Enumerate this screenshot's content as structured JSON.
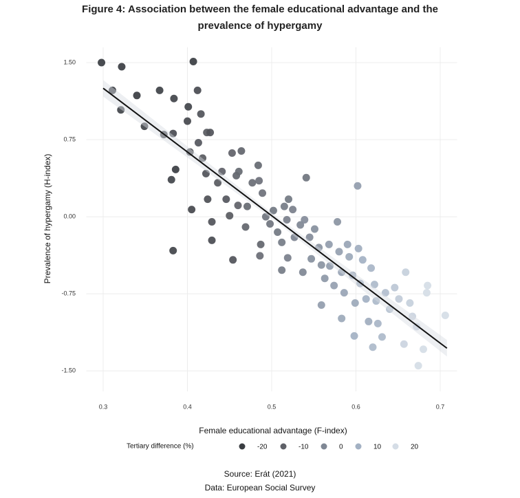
{
  "chart_data": {
    "type": "scatter",
    "title": "Figure 4: Association between the female educational advantage and the prevalence of hypergamy",
    "x_label": "Female educational advantage (F-index)",
    "y_label": "Prevalence of hypergamy (H-index)",
    "legend_title": "Tertiary difference (%)",
    "source": "Source: Erát (2021)",
    "data_note": "Data: European Social Survey",
    "xlim": [
      0.28,
      0.72
    ],
    "xticks": [
      0.3,
      0.4,
      0.5,
      0.6,
      0.7
    ],
    "ylim": [
      -1.7,
      1.65
    ],
    "yticks": [
      {
        "value": -1.5,
        "label": "-1.50"
      },
      {
        "value": -0.75,
        "label": "-0.75"
      },
      {
        "value": 0,
        "label": "0.00"
      },
      {
        "value": 0.75,
        "label": "0.75"
      },
      {
        "value": 1.5,
        "label": "1.50"
      }
    ],
    "grid": true,
    "color_scale": {
      "values": [
        -20,
        -10,
        0,
        10,
        20
      ],
      "colors": [
        "#3a3d42",
        "#5f6168",
        "#7f8794",
        "#a3b1c3",
        "#d5dde6"
      ]
    },
    "trend_line": {
      "x": [
        0.3,
        0.708
      ],
      "y": [
        1.25,
        -1.28
      ],
      "color": "#111111"
    },
    "x": [
      0.298,
      0.322,
      0.311,
      0.321,
      0.34,
      0.349,
      0.367,
      0.372,
      0.384,
      0.407,
      0.401,
      0.412,
      0.4,
      0.416,
      0.383,
      0.386,
      0.381,
      0.403,
      0.413,
      0.423,
      0.427,
      0.405,
      0.383,
      0.418,
      0.422,
      0.424,
      0.429,
      0.429,
      0.436,
      0.441,
      0.446,
      0.45,
      0.453,
      0.454,
      0.458,
      0.46,
      0.461,
      0.464,
      0.469,
      0.471,
      0.477,
      0.484,
      0.485,
      0.487,
      0.489,
      0.493,
      0.486,
      0.498,
      0.502,
      0.507,
      0.515,
      0.512,
      0.518,
      0.52,
      0.525,
      0.527,
      0.519,
      0.512,
      0.534,
      0.539,
      0.541,
      0.545,
      0.547,
      0.537,
      0.551,
      0.556,
      0.559,
      0.563,
      0.568,
      0.569,
      0.574,
      0.559,
      0.578,
      0.58,
      0.583,
      0.586,
      0.583,
      0.59,
      0.592,
      0.596,
      0.599,
      0.598,
      0.602,
      0.603,
      0.605,
      0.608,
      0.612,
      0.615,
      0.618,
      0.622,
      0.624,
      0.626,
      0.62,
      0.631,
      0.635,
      0.64,
      0.646,
      0.651,
      0.659,
      0.664,
      0.667,
      0.672,
      0.684,
      0.674,
      0.68,
      0.685,
      0.706,
      0.657
    ],
    "y": [
      1.5,
      1.46,
      1.23,
      1.04,
      1.18,
      0.88,
      1.23,
      0.8,
      1.15,
      1.51,
      1.07,
      1.23,
      0.93,
      1.0,
      0.81,
      0.46,
      0.36,
      0.63,
      0.72,
      0.82,
      0.82,
      0.07,
      -0.33,
      0.57,
      0.42,
      0.17,
      -0.05,
      -0.23,
      0.33,
      0.44,
      0.17,
      0.01,
      0.62,
      -0.42,
      0.4,
      0.11,
      0.44,
      0.64,
      -0.1,
      0.1,
      0.33,
      0.5,
      0.35,
      -0.27,
      0.23,
      0.0,
      -0.38,
      -0.07,
      0.06,
      -0.15,
      0.1,
      -0.25,
      -0.03,
      0.17,
      0.07,
      -0.2,
      -0.4,
      -0.52,
      -0.08,
      -0.03,
      0.38,
      -0.2,
      -0.41,
      -0.54,
      -0.12,
      -0.3,
      -0.47,
      -0.6,
      -0.27,
      -0.48,
      -0.67,
      -0.86,
      -0.05,
      -0.34,
      -0.54,
      -0.74,
      -0.99,
      -0.27,
      -0.39,
      -0.57,
      -0.84,
      -1.16,
      0.3,
      -0.31,
      -0.65,
      -0.42,
      -0.8,
      -1.02,
      -0.5,
      -0.66,
      -0.82,
      -1.04,
      -1.27,
      -1.17,
      -0.74,
      -0.9,
      -0.69,
      -0.8,
      -0.54,
      -0.84,
      -0.97,
      -1.07,
      -0.74,
      -1.45,
      -1.29,
      -0.67,
      -0.96,
      -1.24
    ],
    "color_values": [
      -22,
      -20,
      -21,
      -18,
      -20,
      -18,
      -19,
      -17,
      -18,
      -22,
      -18,
      -16,
      -17,
      -14,
      -16,
      -20,
      -18,
      -15,
      -13,
      -12,
      -14,
      -17,
      -18,
      -12,
      -14,
      -15,
      -14,
      -16,
      -12,
      -10,
      -13,
      -12,
      -10,
      -14,
      -9,
      -10,
      -8,
      -9,
      -9,
      -8,
      -7,
      -8,
      -6,
      -9,
      -6,
      -5,
      -7,
      -5,
      -4,
      -4,
      -3,
      -3,
      -2,
      -4,
      -2,
      -1,
      -2,
      -3,
      0,
      1,
      -5,
      1,
      2,
      0,
      2,
      3,
      3,
      4,
      5,
      5,
      6,
      5,
      3,
      6,
      7,
      7,
      8,
      7,
      8,
      8,
      8,
      10,
      5,
      9,
      9,
      10,
      10,
      9,
      11,
      12,
      12,
      11,
      12,
      12,
      13,
      14,
      15,
      16,
      17,
      17,
      18,
      18,
      20,
      21,
      21,
      22,
      24,
      18
    ]
  }
}
